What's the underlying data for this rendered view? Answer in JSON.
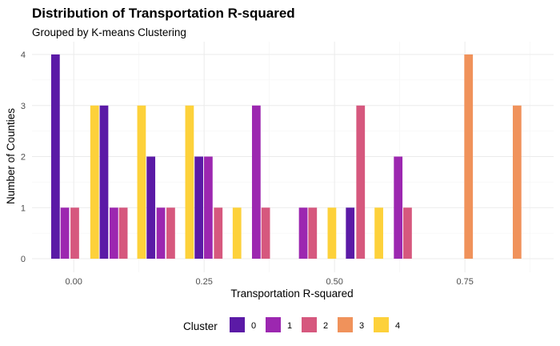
{
  "chart_data": {
    "type": "bar",
    "title": "Distribution of Transportation R-squared",
    "subtitle": "Grouped by K-means Clustering",
    "xlabel": "Transportation R-squared",
    "ylabel": "Number of Counties",
    "xlim": [
      -0.08,
      0.92
    ],
    "ylim": [
      0,
      4
    ],
    "x_ticks": [
      0.0,
      0.25,
      0.5,
      0.75
    ],
    "x_tick_labels": [
      "0.00",
      "0.25",
      "0.50",
      "0.75"
    ],
    "y_ticks": [
      0,
      1,
      2,
      3,
      4
    ],
    "y_tick_labels": [
      "0",
      "1",
      "2",
      "3",
      "4"
    ],
    "bin_width": 0.09,
    "grid": true,
    "legend": {
      "title": "Cluster",
      "position": "bottom"
    },
    "series": [
      {
        "name": "0",
        "color": "#5B1AA6",
        "bars": [
          {
            "x": -0.035,
            "y": 4
          },
          {
            "x": 0.058,
            "y": 3
          },
          {
            "x": 0.148,
            "y": 2
          },
          {
            "x": 0.24,
            "y": 2
          },
          {
            "x": 0.53,
            "y": 1
          }
        ]
      },
      {
        "name": "1",
        "color": "#9C27B0",
        "bars": [
          {
            "x": -0.017,
            "y": 1
          },
          {
            "x": 0.077,
            "y": 1
          },
          {
            "x": 0.167,
            "y": 1
          },
          {
            "x": 0.258,
            "y": 2
          },
          {
            "x": 0.35,
            "y": 3
          },
          {
            "x": 0.44,
            "y": 1
          },
          {
            "x": 0.622,
            "y": 2
          }
        ]
      },
      {
        "name": "2",
        "color": "#D6587E",
        "bars": [
          {
            "x": 0.002,
            "y": 1
          },
          {
            "x": 0.095,
            "y": 1
          },
          {
            "x": 0.186,
            "y": 1
          },
          {
            "x": 0.277,
            "y": 1
          },
          {
            "x": 0.368,
            "y": 1
          },
          {
            "x": 0.458,
            "y": 1
          },
          {
            "x": 0.55,
            "y": 3
          },
          {
            "x": 0.64,
            "y": 1
          }
        ]
      },
      {
        "name": "3",
        "color": "#F0925B",
        "bars": [
          {
            "x": 0.757,
            "y": 4
          },
          {
            "x": 0.85,
            "y": 3
          }
        ]
      },
      {
        "name": "4",
        "color": "#FDD13A",
        "bars": [
          {
            "x": 0.04,
            "y": 3
          },
          {
            "x": 0.13,
            "y": 3
          },
          {
            "x": 0.222,
            "y": 3
          },
          {
            "x": 0.313,
            "y": 1
          },
          {
            "x": 0.495,
            "y": 1
          },
          {
            "x": 0.585,
            "y": 1
          }
        ]
      }
    ]
  }
}
